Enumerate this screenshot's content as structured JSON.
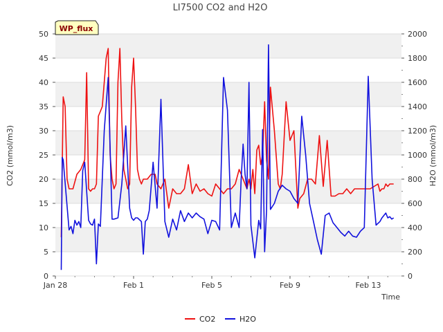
{
  "chart_data": {
    "type": "line",
    "title": "LI7500 CO2 and H2O",
    "badge": "WP_flux",
    "xlabel": "Time",
    "ylabel_left": "CO2 (mmol/m3)",
    "ylabel_right": "H2O (mmol/m3)",
    "x_unit": "days since Jan 28",
    "xlim": [
      0,
      17.7
    ],
    "ylim_left": [
      0,
      50
    ],
    "ylim_right": [
      0,
      2000
    ],
    "x_ticks": [
      {
        "value": 0,
        "label": "Jan 28"
      },
      {
        "value": 4,
        "label": "Feb 1"
      },
      {
        "value": 8,
        "label": "Feb 5"
      },
      {
        "value": 12,
        "label": "Feb 9"
      },
      {
        "value": 16,
        "label": "Feb 13"
      }
    ],
    "y_ticks_left": [
      0,
      5,
      10,
      15,
      20,
      25,
      30,
      35,
      40,
      45,
      50
    ],
    "y_ticks_right": [
      0,
      200,
      400,
      600,
      800,
      1000,
      1200,
      1400,
      1600,
      1800,
      2000
    ],
    "grid": true,
    "legend_position": "bottom-center",
    "series": [
      {
        "name": "CO2",
        "color": "#ee1111",
        "axis": "left",
        "x": [
          0.3,
          0.4,
          0.5,
          0.6,
          0.7,
          0.9,
          1.1,
          1.3,
          1.5,
          1.6,
          1.7,
          1.8,
          1.9,
          2.0,
          2.1,
          2.2,
          2.3,
          2.4,
          2.5,
          2.6,
          2.7,
          2.8,
          2.9,
          3.0,
          3.1,
          3.2,
          3.3,
          3.4,
          3.5,
          3.6,
          3.7,
          3.8,
          3.9,
          4.0,
          4.1,
          4.2,
          4.3,
          4.4,
          4.5,
          4.7,
          4.9,
          5.1,
          5.2,
          5.4,
          5.6,
          5.8,
          6.0,
          6.2,
          6.4,
          6.6,
          6.8,
          7.0,
          7.2,
          7.4,
          7.6,
          7.8,
          8.0,
          8.2,
          8.4,
          8.6,
          8.8,
          9.0,
          9.2,
          9.4,
          9.5,
          9.6,
          9.7,
          9.8,
          9.9,
          10.0,
          10.1,
          10.2,
          10.3,
          10.4,
          10.5,
          10.6,
          10.7,
          10.8,
          10.9,
          11.0,
          11.2,
          11.4,
          11.5,
          11.6,
          11.8,
          12.0,
          12.2,
          12.4,
          12.5,
          12.7,
          12.9,
          13.1,
          13.3,
          13.5,
          13.7,
          13.9,
          14.1,
          14.3,
          14.5,
          14.7,
          14.9,
          15.1,
          15.3,
          15.5,
          15.7,
          15.9,
          16.1,
          16.3,
          16.5,
          16.6,
          16.7,
          16.8,
          16.9,
          17.0,
          17.1,
          17.2,
          17.3
        ],
        "y": [
          8,
          37,
          35,
          20,
          18,
          18,
          21,
          22,
          24,
          42,
          18,
          17.5,
          18,
          18,
          19,
          33,
          34,
          35,
          40,
          45,
          47,
          25,
          20,
          18,
          19,
          40,
          47,
          32,
          22,
          20,
          18,
          19,
          39,
          45,
          35,
          22,
          20,
          19,
          20,
          20,
          21,
          21,
          19,
          18,
          20,
          14,
          18,
          17,
          17,
          18,
          23,
          17,
          19,
          17.5,
          18,
          17,
          16.5,
          19,
          18,
          17,
          18,
          18,
          19,
          22,
          21,
          20,
          19,
          18,
          20,
          18,
          22,
          17,
          26,
          27,
          23,
          25,
          36,
          24,
          20,
          39,
          30,
          19,
          18,
          21,
          36,
          28,
          30,
          14,
          16,
          17,
          20,
          20,
          19,
          29,
          18.5,
          28,
          16.5,
          16.5,
          17,
          17,
          18,
          17,
          18,
          18,
          18,
          18,
          18,
          18.5,
          19,
          17.5,
          18,
          18,
          19,
          18.5,
          19,
          19,
          19
        ]
      },
      {
        "name": "H2O",
        "color": "#1111dd",
        "axis": "right",
        "x": [
          0.3,
          0.35,
          0.4,
          0.7,
          0.8,
          0.9,
          1.0,
          1.1,
          1.2,
          1.3,
          1.4,
          1.5,
          1.7,
          1.8,
          1.9,
          2.0,
          2.1,
          2.2,
          2.3,
          2.5,
          2.7,
          2.9,
          3.0,
          3.2,
          3.4,
          3.6,
          3.8,
          3.9,
          4.0,
          4.1,
          4.2,
          4.4,
          4.5,
          4.6,
          4.7,
          4.8,
          5.0,
          5.2,
          5.4,
          5.6,
          5.8,
          6.0,
          6.2,
          6.4,
          6.6,
          6.8,
          7.0,
          7.2,
          7.4,
          7.6,
          7.8,
          8.0,
          8.2,
          8.4,
          8.6,
          8.8,
          9.0,
          9.2,
          9.4,
          9.5,
          9.6,
          9.7,
          9.8,
          9.9,
          10.0,
          10.2,
          10.4,
          10.5,
          10.6,
          10.7,
          10.8,
          10.9,
          11.0,
          11.2,
          11.4,
          11.6,
          11.8,
          12.0,
          12.2,
          12.4,
          12.6,
          12.8,
          13.0,
          13.2,
          13.4,
          13.6,
          13.8,
          14.0,
          14.2,
          14.4,
          14.6,
          14.8,
          15.0,
          15.2,
          15.4,
          15.6,
          15.8,
          16.0,
          16.2,
          16.4,
          16.6,
          16.7,
          16.8,
          16.9,
          17.0,
          17.1,
          17.2,
          17.3
        ],
        "y": [
          50,
          980,
          960,
          380,
          410,
          350,
          460,
          420,
          450,
          400,
          870,
          940,
          460,
          430,
          420,
          470,
          100,
          430,
          410,
          1200,
          1640,
          470,
          470,
          480,
          760,
          1240,
          560,
          480,
          460,
          480,
          480,
          450,
          180,
          450,
          470,
          540,
          940,
          560,
          1460,
          450,
          320,
          470,
          380,
          540,
          450,
          520,
          480,
          520,
          490,
          470,
          350,
          460,
          450,
          380,
          1640,
          1370,
          400,
          520,
          400,
          800,
          1090,
          840,
          720,
          1600,
          420,
          150,
          460,
          390,
          1210,
          200,
          540,
          1910,
          550,
          600,
          700,
          750,
          720,
          700,
          640,
          600,
          1320,
          1000,
          600,
          450,
          300,
          180,
          500,
          520,
          440,
          400,
          360,
          330,
          370,
          330,
          320,
          370,
          400,
          1650,
          800,
          420,
          450,
          480,
          500,
          520,
          480,
          490,
          470,
          480
        ]
      }
    ]
  }
}
